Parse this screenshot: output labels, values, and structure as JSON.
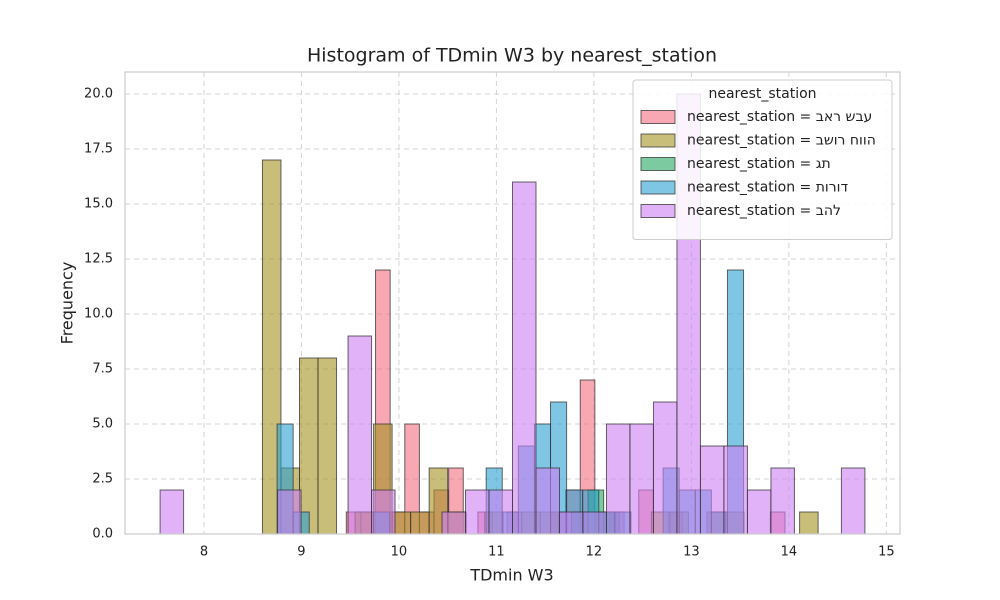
{
  "chart_data": {
    "type": "histogram",
    "title": "Histogram of TDmin W3 by nearest_station",
    "x_label": "TDmin W3",
    "y_label": "Frequency",
    "legend_title": "nearest_station",
    "legend_position": "upper right",
    "grid": true,
    "xlim": [
      7.19,
      15.14
    ],
    "ylim": [
      0,
      21
    ],
    "xticks": [
      8,
      9,
      10,
      11,
      12,
      13,
      14,
      15
    ],
    "yticks": [
      {
        "value": 0,
        "label": "0.0"
      },
      {
        "value": 2.5,
        "label": "2.5"
      },
      {
        "value": 5,
        "label": "5.0"
      },
      {
        "value": 7.5,
        "label": "7.5"
      },
      {
        "value": 10,
        "label": "10.0"
      },
      {
        "value": 12.5,
        "label": "12.5"
      },
      {
        "value": 15,
        "label": "15.0"
      },
      {
        "value": 17.5,
        "label": "17.5"
      },
      {
        "value": 20,
        "label": "20.0"
      }
    ],
    "series": [
      {
        "name": "nearest_station = עבש ראב",
        "color": "#f26e7f",
        "bins": [
          9.46,
          9.61,
          9.76,
          9.91,
          10.06,
          10.21,
          10.36,
          10.51,
          10.66,
          10.81,
          10.96,
          11.11,
          11.26,
          11.41,
          11.56,
          11.71,
          11.86,
          12.01,
          12.16,
          12.31,
          12.46,
          12.61,
          12.76,
          12.91,
          13.06,
          13.21,
          13.36,
          13.51,
          13.66,
          13.81,
          13.96
        ],
        "values": [
          1,
          1,
          12,
          1,
          5,
          1,
          2,
          3,
          0,
          1,
          0,
          1,
          0,
          0,
          1,
          2,
          7,
          0,
          1,
          0,
          2,
          0,
          1,
          0,
          0,
          0,
          0,
          0,
          0,
          1
        ]
      },
      {
        "name": "nearest_station = הווח רושב",
        "color": "#a59121",
        "bins": [
          8.6,
          8.79,
          8.98,
          9.17,
          9.36,
          9.55,
          9.74,
          9.93,
          10.12,
          10.31,
          10.5,
          10.69,
          10.88,
          11.07,
          11.26,
          11.45,
          11.64,
          11.83,
          12.02,
          12.21,
          12.4,
          12.59,
          12.78,
          12.97,
          13.16,
          13.35,
          13.54,
          13.73,
          13.92,
          14.11,
          14.3
        ],
        "values": [
          17,
          3,
          8,
          8,
          0,
          1,
          5,
          1,
          1,
          3,
          1,
          0,
          1,
          0,
          1,
          1,
          0,
          0,
          1,
          0,
          0,
          1,
          1,
          0,
          1,
          1,
          0,
          0,
          0,
          1
        ]
      },
      {
        "name": "nearest_station = תג",
        "color": "#25a861",
        "bins": [
          11.77,
          11.94,
          12.1,
          12.26
        ],
        "values": [
          1,
          2,
          1
        ]
      },
      {
        "name": "nearest_station = דורות",
        "color": "#2aa0d2",
        "bins": [
          8.75,
          8.915,
          9.08,
          9.245,
          9.41,
          9.575,
          9.74,
          9.905,
          10.07,
          10.235,
          10.4,
          10.565,
          10.73,
          10.895,
          11.06,
          11.225,
          11.39,
          11.555,
          11.72,
          11.885,
          12.05,
          12.215,
          12.38,
          12.545,
          12.71,
          12.875,
          13.04,
          13.205,
          13.37,
          13.535
        ],
        "values": [
          5,
          1,
          0,
          0,
          0,
          0,
          1,
          0,
          0,
          0,
          0,
          0,
          0,
          3,
          1,
          4,
          5,
          6,
          2,
          2,
          1,
          1,
          0,
          0,
          3,
          2,
          2,
          1,
          12
        ]
      },
      {
        "name": "nearest_station = להב",
        "color": "#cd7ff3",
        "bins": [
          7.55,
          7.791,
          8.032,
          8.273,
          8.514,
          8.755,
          8.996,
          9.237,
          9.478,
          9.719,
          9.96,
          10.201,
          10.442,
          10.683,
          10.924,
          11.165,
          11.406,
          11.647,
          11.888,
          12.129,
          12.37,
          12.611,
          12.852,
          13.093,
          13.334,
          13.575,
          13.816,
          14.057,
          14.298,
          14.539,
          14.78
        ],
        "values": [
          2,
          0,
          0,
          0,
          0,
          2,
          0,
          0,
          9,
          2,
          0,
          0,
          1,
          2,
          2,
          16,
          3,
          1,
          1,
          5,
          5,
          6,
          20,
          4,
          4,
          2,
          3,
          0,
          0,
          3
        ]
      }
    ]
  }
}
